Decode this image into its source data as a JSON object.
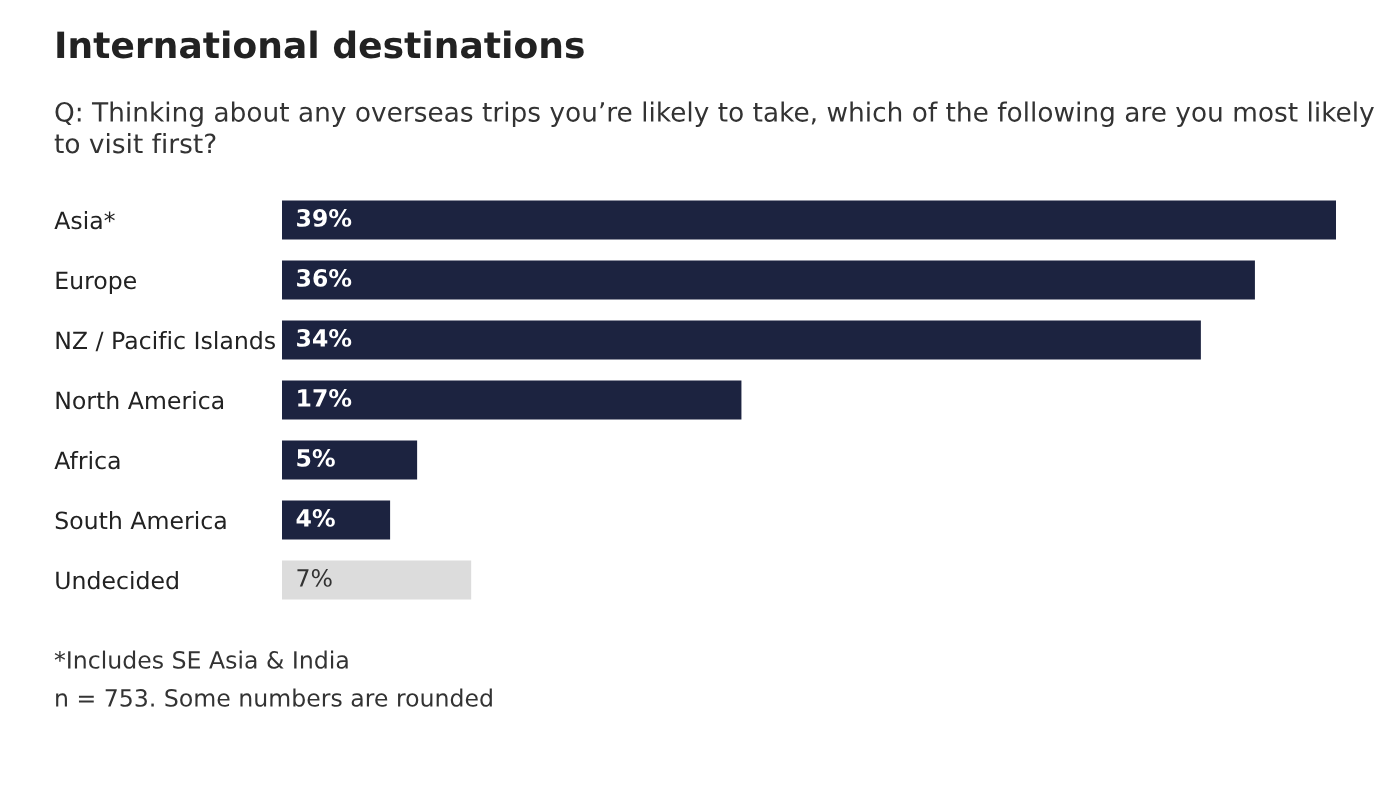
{
  "chart_data": {
    "type": "bar",
    "orientation": "horizontal",
    "title": "International destinations",
    "subtitle": "Q: Thinking about any overseas trips you’re likely to take, which of the following are you most likely to visit first?",
    "categories": [
      "Asia*",
      "Europe",
      "NZ / Pacific Islands",
      "North America",
      "Africa",
      "South America",
      "Undecided"
    ],
    "values": [
      39,
      36,
      34,
      17,
      5,
      4,
      7
    ],
    "colors": [
      "#1c2340",
      "#1c2340",
      "#1c2340",
      "#1c2340",
      "#1c2340",
      "#1c2340",
      "#dcdcdc"
    ],
    "value_labels": [
      "39%",
      "36%",
      "34%",
      "17%",
      "5%",
      "4%",
      "7%"
    ],
    "xlim": [
      0,
      39
    ],
    "tick_labels": "y",
    "grid": false,
    "legend": false,
    "annotations": [
      "*Includes SE Asia & India",
      "n = 753. Some numbers are rounded"
    ]
  }
}
